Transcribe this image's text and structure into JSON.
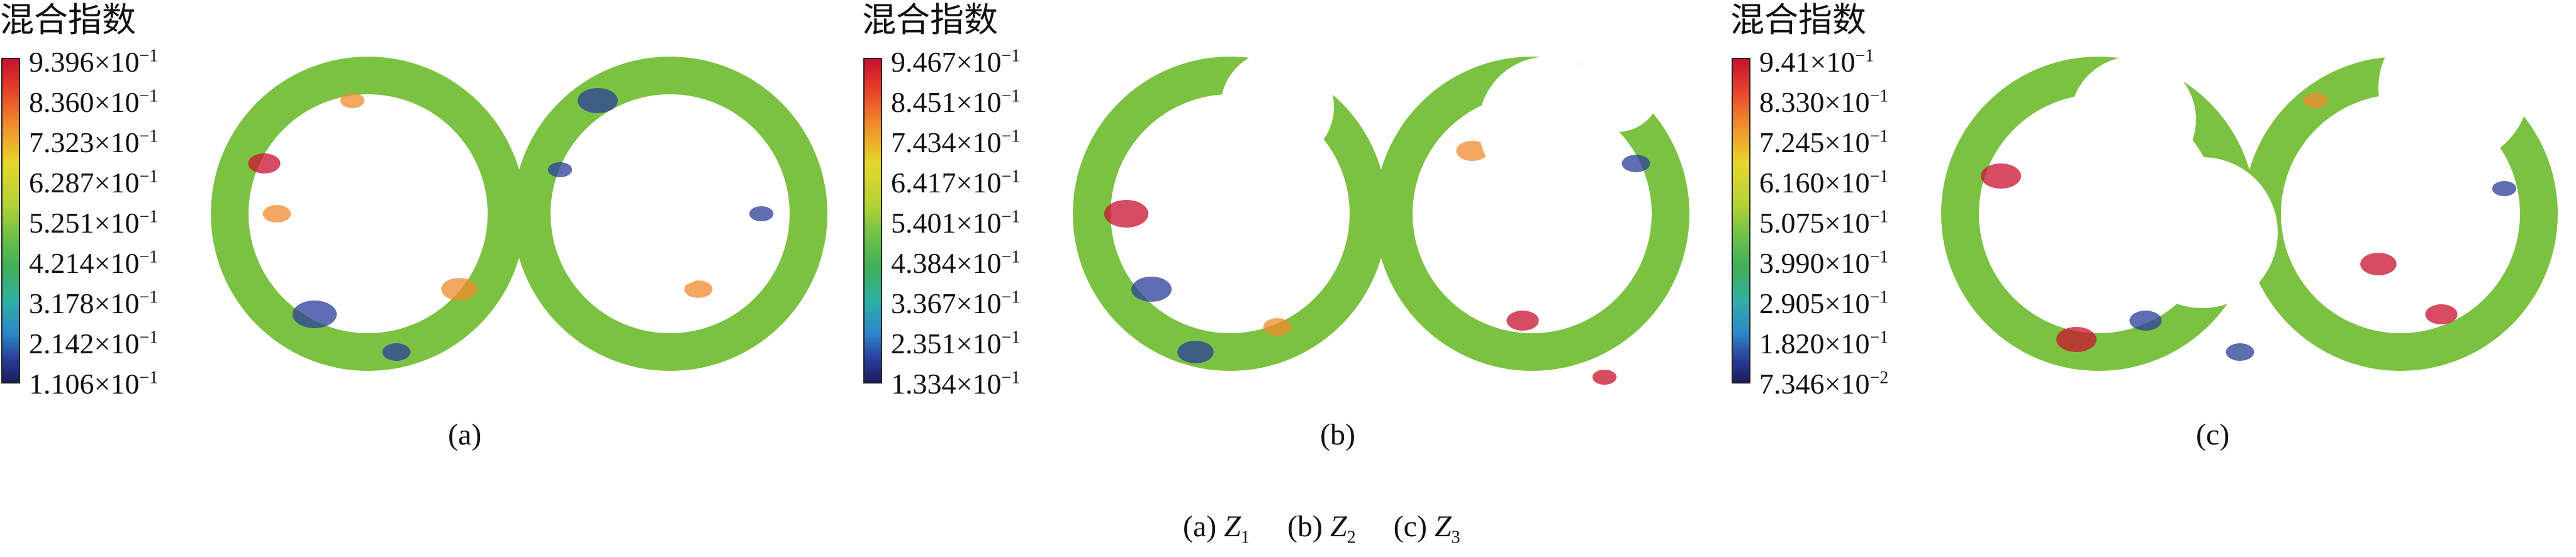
{
  "panels": [
    {
      "legend_title": "混合指数",
      "ticks": [
        {
          "m": "9.396×10",
          "e": "−1"
        },
        {
          "m": "8.360×10",
          "e": "−1"
        },
        {
          "m": "7.323×10",
          "e": "−1"
        },
        {
          "m": "6.287×10",
          "e": "−1"
        },
        {
          "m": "5.251×10",
          "e": "−1"
        },
        {
          "m": "4.214×10",
          "e": "−1"
        },
        {
          "m": "3.178×10",
          "e": "−1"
        },
        {
          "m": "2.142×10",
          "e": "−1"
        },
        {
          "m": "1.106×10",
          "e": "−1"
        }
      ],
      "label": "(a)"
    },
    {
      "legend_title": "混合指数",
      "ticks": [
        {
          "m": "9.467×10",
          "e": "−1"
        },
        {
          "m": "8.451×10",
          "e": "−1"
        },
        {
          "m": "7.434×10",
          "e": "−1"
        },
        {
          "m": "6.417×10",
          "e": "−1"
        },
        {
          "m": "5.401×10",
          "e": "−1"
        },
        {
          "m": "4.384×10",
          "e": "−1"
        },
        {
          "m": "3.367×10",
          "e": "−1"
        },
        {
          "m": "2.351×10",
          "e": "−1"
        },
        {
          "m": "1.334×10",
          "e": "−1"
        }
      ],
      "label": "(b)"
    },
    {
      "legend_title": "混合指数",
      "ticks": [
        {
          "m": "9.41×10",
          "e": "−1"
        },
        {
          "m": "8.330×10",
          "e": "−1"
        },
        {
          "m": "7.245×10",
          "e": "−1"
        },
        {
          "m": "6.160×10",
          "e": "−1"
        },
        {
          "m": "5.075×10",
          "e": "−1"
        },
        {
          "m": "3.990×10",
          "e": "−1"
        },
        {
          "m": "2.905×10",
          "e": "−1"
        },
        {
          "m": "1.820×10",
          "e": "−1"
        },
        {
          "m": "7.346×10",
          "e": "−2"
        }
      ],
      "label": "(c)"
    }
  ],
  "caption": {
    "a_prefix": "(a)",
    "a_var": "Z",
    "a_sub": "1",
    "b_prefix": "(b)",
    "b_var": "Z",
    "b_sub": "2",
    "c_prefix": "(c)",
    "c_var": "Z",
    "c_sub": "3"
  },
  "colors": {
    "high": "#c8102e",
    "mid_high": "#f08a2b",
    "mid": "#6cc04a",
    "low": "#2a3c9a",
    "field_base": "#7cc242"
  }
}
